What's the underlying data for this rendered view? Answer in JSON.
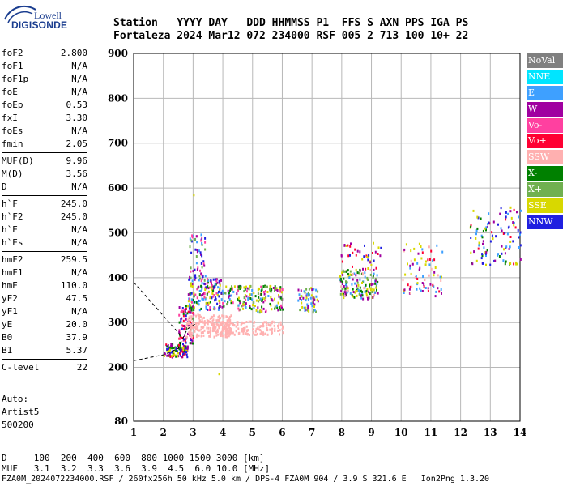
{
  "logo": {
    "line1": "Lowell",
    "line2": "DIGISONDE"
  },
  "header": {
    "labels": "Station   YYYY DAY   DDD HHMMSS P1  FFS S AXN PPS IGA PS",
    "values": "Fortaleza 2024 Mar12 072 234000 RSF 005 2 713 100 10+ 22"
  },
  "params": {
    "group1": [
      {
        "k": "foF2",
        "v": "2.800"
      },
      {
        "k": "foF1",
        "v": "N/A"
      },
      {
        "k": "foF1p",
        "v": "N/A"
      },
      {
        "k": "foE",
        "v": "N/A"
      },
      {
        "k": "foEp",
        "v": "0.53"
      },
      {
        "k": "fxI",
        "v": "3.30"
      },
      {
        "k": "foEs",
        "v": "N/A"
      },
      {
        "k": "fmin",
        "v": "2.05"
      }
    ],
    "group2": [
      {
        "k": "MUF(D)",
        "v": "9.96"
      },
      {
        "k": "M(D)",
        "v": "3.56"
      },
      {
        "k": "D",
        "v": "N/A"
      }
    ],
    "group3": [
      {
        "k": "h`F",
        "v": "245.0"
      },
      {
        "k": "h`F2",
        "v": "245.0"
      },
      {
        "k": "h`E",
        "v": "N/A"
      },
      {
        "k": "h`Es",
        "v": "N/A"
      }
    ],
    "group4": [
      {
        "k": "hmF2",
        "v": "259.5"
      },
      {
        "k": "hmF1",
        "v": "N/A"
      },
      {
        "k": "hmE",
        "v": "110.0"
      },
      {
        "k": "yF2",
        "v": "47.5"
      },
      {
        "k": "yF1",
        "v": "N/A"
      },
      {
        "k": "yE",
        "v": "20.0"
      },
      {
        "k": "B0",
        "v": "37.9"
      },
      {
        "k": "B1",
        "v": "5.37"
      }
    ],
    "group5": [
      {
        "k": "C-level",
        "v": "22"
      }
    ]
  },
  "auto": {
    "line1": "Auto:",
    "line2": "Artist5",
    "line3": "500200"
  },
  "legend": [
    {
      "label": "NoVal",
      "color": "#808080"
    },
    {
      "label": "NNE",
      "color": "#00e5ff"
    },
    {
      "label": "E",
      "color": "#3ea0ff"
    },
    {
      "label": "W",
      "color": "#a000a0"
    },
    {
      "label": "Vo-",
      "color": "#ff40a0"
    },
    {
      "label": "Vo+",
      "color": "#ff0033"
    },
    {
      "label": "SSW",
      "color": "#ffb0b0"
    },
    {
      "label": "X-",
      "color": "#008000"
    },
    {
      "label": "X+",
      "color": "#70b050"
    },
    {
      "label": "SSE",
      "color": "#d8d800"
    },
    {
      "label": "NNW",
      "color": "#2020e0"
    }
  ],
  "footer": {
    "line1": "D     100  200  400  600  800 1000 1500 3000 [km]",
    "line2": "MUF   3.1  3.2  3.3  3.6  3.9  4.5  6.0 10.0 [MHz]",
    "line3": "FZA0M_2024072234000.RSF / 260fx256h 50 kHz 5.0 km / DPS-4 FZA0M 904 / 3.9 S 321.6 E   Ion2Png 1.3.20"
  },
  "chart_data": {
    "type": "scatter",
    "xlim": [
      1,
      14
    ],
    "ylim": [
      80,
      900
    ],
    "xticks": [
      "1",
      "2",
      "3",
      "4",
      "5",
      "6",
      "7",
      "8",
      "9",
      "10",
      "11",
      "12",
      "13",
      "14"
    ],
    "yticks": [
      "80",
      "200",
      "300",
      "400",
      "500",
      "600",
      "700",
      "800",
      "900"
    ],
    "grid": true,
    "clusters": [
      {
        "fmin": 2.0,
        "fmax": 2.8,
        "hmin": 225,
        "hmax": 255,
        "n": 110,
        "colors": [
          "#ff0033",
          "#008000",
          "#2020e0",
          "#a000a0",
          "#d8d800"
        ]
      },
      {
        "fmin": 2.5,
        "fmax": 3.0,
        "hmin": 255,
        "hmax": 340,
        "n": 90,
        "colors": [
          "#ff0033",
          "#ff40a0",
          "#a000a0",
          "#2020e0",
          "#008000"
        ]
      },
      {
        "fmin": 2.75,
        "fmax": 4.3,
        "hmin": 270,
        "hmax": 320,
        "n": 200,
        "colors": [
          "#ffb0b0"
        ]
      },
      {
        "fmin": 3.8,
        "fmax": 6.0,
        "hmin": 275,
        "hmax": 305,
        "n": 150,
        "colors": [
          "#ffb0b0"
        ]
      },
      {
        "fmin": 2.8,
        "fmax": 4.0,
        "hmin": 330,
        "hmax": 400,
        "n": 160,
        "colors": [
          "#3ea0ff",
          "#a000a0",
          "#d8d800",
          "#ff40a0",
          "#2020e0",
          "#008000"
        ]
      },
      {
        "fmin": 2.85,
        "fmax": 3.4,
        "hmin": 395,
        "hmax": 500,
        "n": 60,
        "colors": [
          "#3ea0ff",
          "#a000a0",
          "#ff40a0",
          "#70b050",
          "#2020e0"
        ]
      },
      {
        "fmin": 4.0,
        "fmax": 6.0,
        "hmin": 325,
        "hmax": 385,
        "n": 180,
        "colors": [
          "#d8d800",
          "#3ea0ff",
          "#a000a0",
          "#008000",
          "#ff40a0",
          "#70b050"
        ]
      },
      {
        "fmin": 6.5,
        "fmax": 7.2,
        "hmin": 325,
        "hmax": 380,
        "n": 60,
        "colors": [
          "#d8d800",
          "#3ea0ff",
          "#70b050",
          "#a000a0"
        ]
      },
      {
        "fmin": 7.9,
        "fmax": 9.2,
        "hmin": 355,
        "hmax": 420,
        "n": 160,
        "colors": [
          "#d8d800",
          "#a000a0",
          "#ffb0b0",
          "#70b050",
          "#3ea0ff",
          "#008000"
        ]
      },
      {
        "fmin": 7.9,
        "fmax": 9.3,
        "hmin": 420,
        "hmax": 480,
        "n": 40,
        "colors": [
          "#d8d800",
          "#a000a0",
          "#2020e0",
          "#ff0033"
        ]
      },
      {
        "fmin": 10.0,
        "fmax": 11.4,
        "hmin": 360,
        "hmax": 480,
        "n": 80,
        "colors": [
          "#d8d800",
          "#ff0033",
          "#a000a0",
          "#ffb0b0",
          "#3ea0ff"
        ]
      },
      {
        "fmin": 12.3,
        "fmax": 14.0,
        "hmin": 430,
        "hmax": 560,
        "n": 110,
        "colors": [
          "#a000a0",
          "#d8d800",
          "#008000",
          "#ff0033",
          "#3ea0ff",
          "#2020e0"
        ]
      }
    ],
    "dashed_trace": [
      {
        "x": 1.0,
        "y": 215
      },
      {
        "x": 2.0,
        "y": 228
      },
      {
        "x": 2.5,
        "y": 242
      },
      {
        "x": 2.8,
        "y": 285
      },
      {
        "x": 3.1,
        "y": 298
      }
    ],
    "dashed_trace2": [
      {
        "x": 1.0,
        "y": 390
      },
      {
        "x": 2.6,
        "y": 270
      }
    ]
  }
}
